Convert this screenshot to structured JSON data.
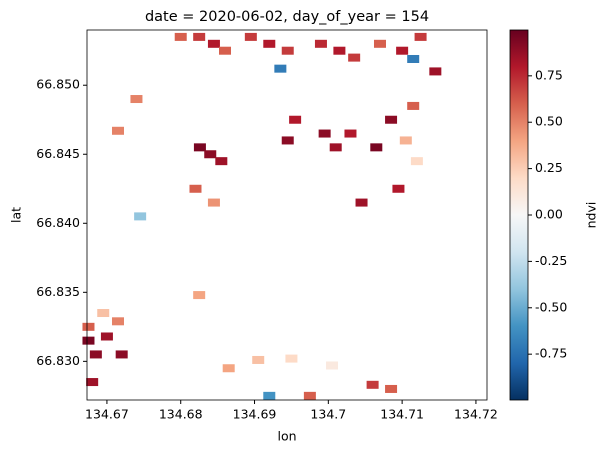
{
  "chart_data": {
    "type": "raster",
    "title": "date = 2020-06-02, day_of_year = 154",
    "x_label": "lon",
    "y_label": "lat",
    "colorbar_label": "ndvi",
    "cmap": "RdBu_r",
    "xlim": [
      134.6673,
      134.7215
    ],
    "ylim": [
      66.8272,
      66.854
    ],
    "clim": [
      -0.997,
      0.997
    ],
    "xticks": [
      134.67,
      134.68,
      134.69,
      134.7,
      {
        "value": 134.71,
        "label": "134.71"
      },
      134.72
    ],
    "yticks": [
      {
        "value": 66.83,
        "label": "66.830"
      },
      {
        "value": 66.835,
        "label": "66.835"
      },
      {
        "value": 66.84,
        "label": "66.840"
      },
      {
        "value": 66.845,
        "label": "66.845"
      },
      {
        "value": 66.85,
        "label": "66.850"
      }
    ],
    "cticks": [
      -0.75,
      {
        "value": -0.5,
        "label": "-0.50"
      },
      -0.25,
      {
        "value": 0,
        "label": "0.00"
      },
      0.25,
      {
        "value": 0.5,
        "label": "0.50"
      },
      0.75
    ],
    "x": [
      134.68,
      134.6825,
      134.6845,
      134.686,
      134.6895,
      134.692,
      134.6945,
      134.699,
      134.7015,
      134.7035,
      134.707,
      134.71,
      134.7125,
      134.7145,
      134.6715,
      134.674,
      134.6826,
      134.684,
      134.6855,
      134.682,
      134.6845,
      134.6945,
      134.6995,
      134.701,
      134.703,
      134.7065,
      134.7085,
      134.7105,
      134.712,
      134.7095,
      134.7045,
      134.7115,
      134.6675,
      134.6685,
      134.67,
      134.672,
      134.668,
      134.6675,
      134.6695,
      134.6715,
      134.6825,
      134.6865,
      134.6905,
      134.695,
      134.7005,
      134.706,
      134.7085,
      134.6975,
      134.692,
      134.6745,
      134.7115,
      134.6935,
      134.6955
    ],
    "y": [
      66.8535,
      66.8535,
      66.853,
      66.8525,
      66.8535,
      66.853,
      66.8525,
      66.853,
      66.8525,
      66.852,
      66.853,
      66.8525,
      66.8535,
      66.851,
      66.8467,
      66.849,
      66.8455,
      66.845,
      66.8445,
      66.8425,
      66.8415,
      66.846,
      66.8465,
      66.8455,
      66.8465,
      66.8455,
      66.8475,
      66.846,
      66.8445,
      66.8425,
      66.8415,
      66.8485,
      66.8315,
      66.8305,
      66.8318,
      66.8305,
      66.8285,
      66.8325,
      66.8335,
      66.8329,
      66.8348,
      66.8295,
      66.8301,
      66.8302,
      66.8297,
      66.8283,
      66.828,
      66.8275,
      66.8275,
      66.8405,
      66.8519,
      66.8512,
      66.8475
    ],
    "values": [
      0.6,
      0.7,
      0.8,
      0.6,
      0.7,
      0.8,
      0.7,
      0.75,
      0.8,
      0.7,
      0.6,
      0.8,
      0.7,
      0.85,
      0.5,
      0.5,
      0.95,
      0.9,
      0.85,
      0.6,
      0.45,
      0.9,
      0.9,
      0.85,
      0.8,
      0.95,
      0.9,
      0.35,
      0.2,
      0.8,
      0.85,
      0.6,
      0.95,
      0.9,
      0.85,
      0.9,
      0.85,
      0.6,
      0.3,
      0.5,
      0.4,
      0.4,
      0.3,
      0.2,
      0.1,
      0.7,
      0.6,
      0.6,
      -0.6,
      -0.4,
      -0.7,
      -0.7,
      0.8
    ]
  }
}
